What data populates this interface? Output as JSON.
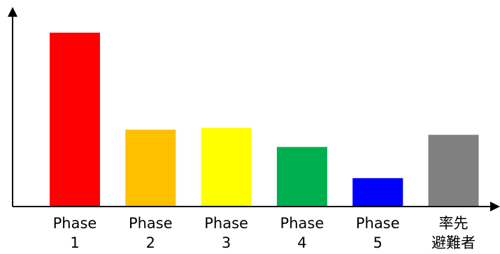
{
  "chart_data": {
    "type": "bar",
    "title": "",
    "xlabel": "",
    "ylabel": "",
    "categories": [
      [
        "Phase",
        "1"
      ],
      [
        "Phase",
        "2"
      ],
      [
        "Phase",
        "3"
      ],
      [
        "Phase",
        "4"
      ],
      [
        "Phase",
        "5"
      ],
      [
        "率先",
        "避難者"
      ]
    ],
    "values": [
      100,
      44,
      45,
      34,
      16,
      41
    ],
    "ylim": [
      0,
      110
    ],
    "colors": [
      "#ff0000",
      "#ffc000",
      "#ffff00",
      "#00b050",
      "#0000ff",
      "#808080"
    ],
    "axis_ticks": false,
    "grid": false,
    "legend": "none"
  }
}
